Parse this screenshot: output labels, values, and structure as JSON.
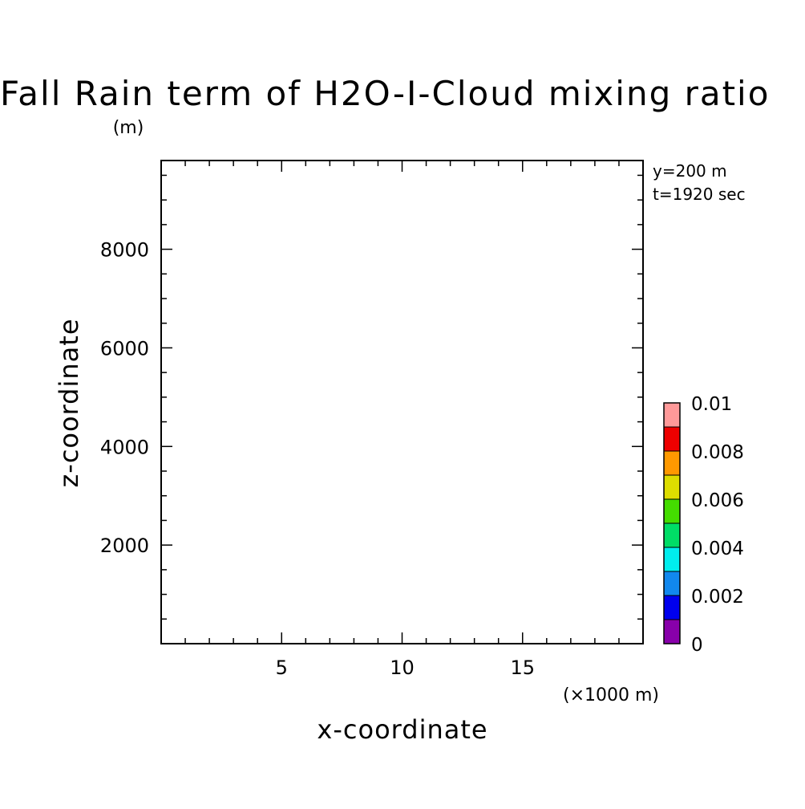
{
  "chart_data": {
    "type": "heatmap",
    "title": "Fall Rain term of H2O-I-Cloud mixing ratio",
    "xlabel": "x-coordinate",
    "ylabel": "z-coordinate",
    "x_units": "(×1000 m)",
    "y_units": "(m)",
    "xlim": [
      0,
      20
    ],
    "ylim": [
      0,
      9800
    ],
    "x_ticks": [
      5,
      10,
      15
    ],
    "x_tick_labels": [
      "5",
      "10",
      "15"
    ],
    "x_minor_step": 1,
    "y_ticks": [
      2000,
      4000,
      6000,
      8000
    ],
    "y_tick_labels": [
      "2000",
      "4000",
      "6000",
      "8000"
    ],
    "y_minor_step": 500,
    "annotations": [
      "y=200 m",
      "t=1920 sec"
    ],
    "values": [],
    "colorbar": {
      "levels": [
        0,
        0.001,
        0.002,
        0.003,
        0.004,
        0.005,
        0.006,
        0.007,
        0.008,
        0.009,
        0.01
      ],
      "colors": [
        "#8800aa",
        "#0000ee",
        "#1188ee",
        "#00eeee",
        "#00dd66",
        "#44dd00",
        "#dddd00",
        "#ff9900",
        "#ee0000",
        "#ff9999"
      ],
      "tick_values": [
        0,
        0.002,
        0.004,
        0.006,
        0.008,
        0.01
      ],
      "tick_labels": [
        "0",
        "0.002",
        "0.004",
        "0.006",
        "0.008",
        "0.01"
      ]
    }
  }
}
